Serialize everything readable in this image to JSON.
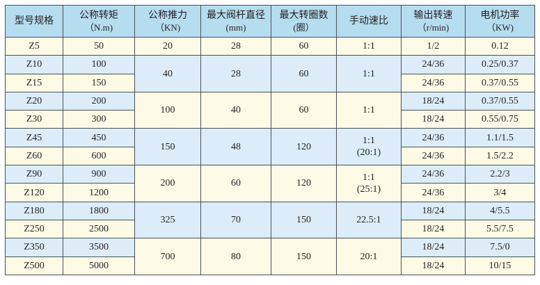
{
  "colors": {
    "header": "#b6dcf0",
    "row_yellow": "#fdfbe6",
    "row_blue": "#dcedf9",
    "border": "#4a4f55"
  },
  "headers": [
    {
      "title": "型号规格",
      "unit": ""
    },
    {
      "title": "公称转矩",
      "unit": "（N.m)"
    },
    {
      "title": "公称推力",
      "unit": "（KN)"
    },
    {
      "title": "最大阀杆直径",
      "unit": "(mm)"
    },
    {
      "title": "最大转圈数",
      "unit": "(圈）"
    },
    {
      "title": "手动速比",
      "unit": ""
    },
    {
      "title": "输出转速",
      "unit": "（r/min)"
    },
    {
      "title": "电机功率",
      "unit": "（KW)"
    }
  ],
  "groups": [
    {
      "thrust": "20",
      "stem_diameter": "28",
      "turns": "60",
      "ratio": [
        "1:1"
      ],
      "shade": "y",
      "rows": [
        {
          "model": "Z5",
          "torque": "50",
          "speed": "1/2",
          "power": "0.12",
          "shade": "y"
        }
      ]
    },
    {
      "thrust": "40",
      "stem_diameter": "28",
      "turns": "60",
      "ratio": [
        "1:1"
      ],
      "shade": "b",
      "rows": [
        {
          "model": "Z10",
          "torque": "100",
          "speed": "24/36",
          "power": "0.25/0.37",
          "shade": "b"
        },
        {
          "model": "Z15",
          "torque": "150",
          "speed": "24/36",
          "power": "0.37/0.55",
          "shade": "y"
        }
      ]
    },
    {
      "thrust": "100",
      "stem_diameter": "40",
      "turns": "60",
      "ratio": [
        "1:1"
      ],
      "shade": "y",
      "rows": [
        {
          "model": "Z20",
          "torque": "200",
          "speed": "18/24",
          "power": "0.37/0.55",
          "shade": "b"
        },
        {
          "model": "Z30",
          "torque": "300",
          "speed": "18/24",
          "power": "0.55/0.75",
          "shade": "y"
        }
      ]
    },
    {
      "thrust": "150",
      "stem_diameter": "48",
      "turns": "120",
      "ratio": [
        "1:1",
        "(20:1)"
      ],
      "shade": "b",
      "rows": [
        {
          "model": "Z45",
          "torque": "450",
          "speed": "24/36",
          "power": "1.1/1.5",
          "shade": "b"
        },
        {
          "model": "Z60",
          "torque": "600",
          "speed": "24/36",
          "power": "1.5/2.2",
          "shade": "y"
        }
      ]
    },
    {
      "thrust": "200",
      "stem_diameter": "60",
      "turns": "120",
      "ratio": [
        "1:1",
        "(25:1)"
      ],
      "shade": "y",
      "rows": [
        {
          "model": "Z90",
          "torque": "900",
          "speed": "24/36",
          "power": "2.2/3",
          "shade": "b"
        },
        {
          "model": "Z120",
          "torque": "1200",
          "speed": "24/36",
          "power": "3/4",
          "shade": "y"
        }
      ]
    },
    {
      "thrust": "325",
      "stem_diameter": "70",
      "turns": "150",
      "ratio": [
        "22.5:1"
      ],
      "shade": "b",
      "rows": [
        {
          "model": "Z180",
          "torque": "1800",
          "speed": "18/24",
          "power": "4/5.5",
          "shade": "b"
        },
        {
          "model": "Z250",
          "torque": "2500",
          "speed": "18/24",
          "power": "5.5/7.5",
          "shade": "y"
        }
      ]
    },
    {
      "thrust": "700",
      "stem_diameter": "80",
      "turns": "150",
      "ratio": [
        "20:1"
      ],
      "shade": "y",
      "rows": [
        {
          "model": "Z350",
          "torque": "3500",
          "speed": "18/24",
          "power": "7.5/0",
          "shade": "b"
        },
        {
          "model": "Z500",
          "torque": "5000",
          "speed": "18/24",
          "power": "10/15",
          "shade": "y"
        }
      ]
    }
  ]
}
